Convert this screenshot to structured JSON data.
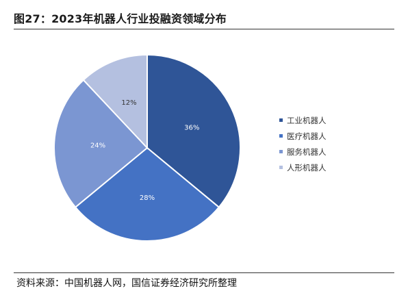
{
  "header": {
    "title": "图27：2023年机器人行业投融资领域分布"
  },
  "footer": {
    "source": "资料来源：中国机器人网，国信证券经济研究所整理"
  },
  "chart_data": {
    "type": "pie",
    "title": "",
    "slices": [
      {
        "label": "工业机器人",
        "value": 36,
        "display": "36%",
        "color": "#2f5597"
      },
      {
        "label": "医疗机器人",
        "value": 28,
        "display": "28%",
        "color": "#4472c4"
      },
      {
        "label": "服务机器人",
        "value": 24,
        "display": "24%",
        "color": "#7b96d2"
      },
      {
        "label": "人形机器人",
        "value": 12,
        "display": "12%",
        "color": "#b4c0e0"
      }
    ],
    "legend_position": "right"
  }
}
